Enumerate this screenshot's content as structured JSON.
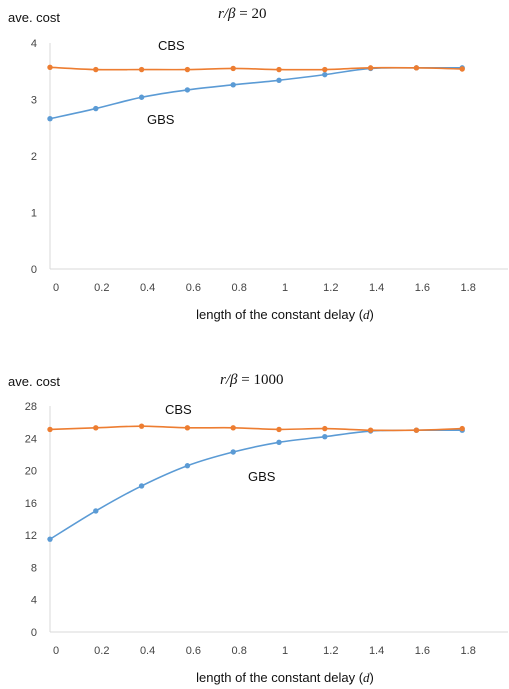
{
  "chart_data": [
    {
      "type": "line",
      "title": "r/β = 20",
      "ylabel": "ave. cost",
      "xlabel": "length of the constant delay (d)",
      "x": [
        0,
        0.2,
        0.4,
        0.6,
        0.8,
        1,
        1.2,
        1.4,
        1.6,
        1.8
      ],
      "xlim": [
        0,
        2
      ],
      "xticks": [
        "0",
        "0.2",
        "0.4",
        "0.6",
        "0.8",
        "1",
        "1.2",
        "1.4",
        "1.6",
        "1.8",
        "2"
      ],
      "ylim": [
        0,
        4
      ],
      "yticks": [
        "0",
        "1",
        "2",
        "3",
        "4"
      ],
      "grid": false,
      "series": [
        {
          "name": "CBS",
          "color": "#ed7d31",
          "values": [
            3.57,
            3.53,
            3.53,
            3.53,
            3.55,
            3.53,
            3.53,
            3.56,
            3.56,
            3.54
          ]
        },
        {
          "name": "GBS",
          "color": "#5b9bd5",
          "values": [
            2.66,
            2.84,
            3.04,
            3.17,
            3.26,
            3.34,
            3.44,
            3.55,
            3.56,
            3.56
          ]
        }
      ],
      "annotations": [
        {
          "text": "CBS",
          "series": "CBS"
        },
        {
          "text": "GBS",
          "series": "GBS"
        }
      ]
    },
    {
      "type": "line",
      "title": "r/β = 1000",
      "ylabel": "ave. cost",
      "xlabel": "length of the constant delay (d)",
      "x": [
        0,
        0.2,
        0.4,
        0.6,
        0.8,
        1,
        1.2,
        1.4,
        1.6,
        1.8
      ],
      "xlim": [
        0,
        2
      ],
      "xticks": [
        "0",
        "0.2",
        "0.4",
        "0.6",
        "0.8",
        "1",
        "1.2",
        "1.4",
        "1.6",
        "1.8",
        "2"
      ],
      "ylim": [
        0,
        28
      ],
      "yticks": [
        "0",
        "4",
        "8",
        "12",
        "16",
        "20",
        "24",
        "28"
      ],
      "grid": false,
      "series": [
        {
          "name": "CBS",
          "color": "#ed7d31",
          "values": [
            25.1,
            25.3,
            25.5,
            25.3,
            25.3,
            25.1,
            25.2,
            25.0,
            25.0,
            25.2
          ]
        },
        {
          "name": "GBS",
          "color": "#5b9bd5",
          "values": [
            11.5,
            15.0,
            18.1,
            20.6,
            22.3,
            23.5,
            24.2,
            24.9,
            25.0,
            25.0
          ]
        }
      ],
      "annotations": [
        {
          "text": "CBS",
          "series": "CBS"
        },
        {
          "text": "GBS",
          "series": "GBS"
        }
      ]
    }
  ]
}
